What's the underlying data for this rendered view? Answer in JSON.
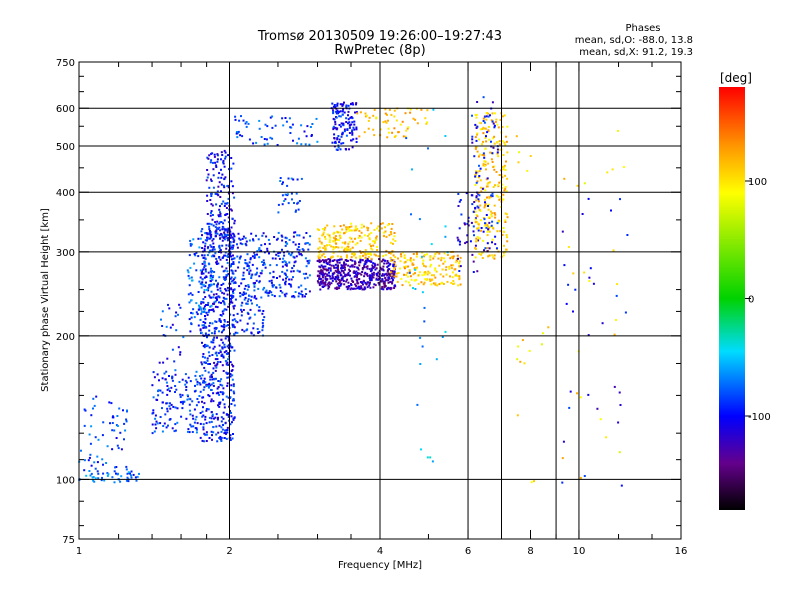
{
  "chart_data": {
    "type": "scatter",
    "title": "Tromsø 20130509 19:26:00–19:27:43",
    "subtitle": "RwPretec (8p)",
    "xlabel": "Frequency [MHz]",
    "ylabel": "Stationary phase Virtual Height [km]",
    "xscale": "log",
    "yscale": "log",
    "xlim": [
      1,
      16
    ],
    "ylim": [
      75,
      750
    ],
    "x_ticks": [
      1,
      2,
      4,
      6,
      8,
      10,
      16
    ],
    "x_tick_labels": [
      "1",
      "2",
      "4",
      "6",
      "8",
      "10",
      "16"
    ],
    "y_ticks": [
      75,
      100,
      200,
      300,
      400,
      500,
      600,
      750
    ],
    "y_tick_labels": [
      "75",
      "100",
      "200",
      "300",
      "400",
      "500",
      "600",
      "750"
    ],
    "grid": true,
    "stats": {
      "heading": "Phases",
      "line1": "mean, sd,O: -88.0, 13.8",
      "line2": "mean, sd,X:  91.2, 19.3"
    },
    "colorbar": {
      "label": "[deg]",
      "range": [
        -180,
        180
      ],
      "ticks": [
        100,
        0,
        -100
      ],
      "tick_labels": [
        "100",
        "0",
        "-100"
      ]
    },
    "clusters": [
      {
        "fmin": 1.0,
        "fmax": 1.32,
        "hmin": 98,
        "hmax": 105,
        "phase": -75,
        "count": 50
      },
      {
        "fmin": 1.0,
        "fmax": 1.25,
        "hmin": 105,
        "hmax": 150,
        "phase": -85,
        "count": 60
      },
      {
        "fmin": 1.4,
        "fmax": 1.75,
        "hmin": 125,
        "hmax": 170,
        "phase": -90,
        "count": 140
      },
      {
        "fmin": 1.45,
        "fmax": 1.65,
        "hmin": 175,
        "hmax": 240,
        "phase": -90,
        "count": 25
      },
      {
        "fmin": 1.75,
        "fmax": 2.05,
        "hmin": 120,
        "hmax": 340,
        "phase": -95,
        "count": 650
      },
      {
        "fmin": 1.8,
        "fmax": 2.05,
        "hmin": 320,
        "hmax": 490,
        "phase": -100,
        "count": 150
      },
      {
        "fmin": 1.65,
        "fmax": 1.85,
        "hmin": 200,
        "hmax": 320,
        "phase": -80,
        "count": 100
      },
      {
        "fmin": 2.0,
        "fmax": 2.9,
        "hmin": 240,
        "hmax": 330,
        "phase": -90,
        "count": 300
      },
      {
        "fmin": 2.05,
        "fmax": 2.35,
        "hmin": 200,
        "hmax": 245,
        "phase": -92,
        "count": 60
      },
      {
        "fmin": 2.05,
        "fmax": 3.0,
        "hmin": 500,
        "hmax": 580,
        "phase": -85,
        "count": 60
      },
      {
        "fmin": 2.5,
        "fmax": 2.8,
        "hmin": 360,
        "hmax": 430,
        "phase": -85,
        "count": 30
      },
      {
        "fmin": 3.0,
        "fmax": 4.3,
        "hmin": 250,
        "hmax": 290,
        "phase": -125,
        "count": 500
      },
      {
        "fmin": 3.0,
        "fmax": 4.3,
        "hmin": 290,
        "hmax": 345,
        "phase": 110,
        "count": 220
      },
      {
        "fmin": 3.2,
        "fmax": 3.6,
        "hmin": 490,
        "hmax": 620,
        "phase": -100,
        "count": 130
      },
      {
        "fmin": 3.6,
        "fmax": 5.0,
        "hmin": 520,
        "hmax": 600,
        "phase": 110,
        "count": 60
      },
      {
        "fmin": 4.2,
        "fmax": 5.8,
        "hmin": 255,
        "hmax": 300,
        "phase": 110,
        "count": 180
      },
      {
        "fmin": 5.7,
        "fmax": 6.3,
        "hmin": 270,
        "hmax": 400,
        "phase": -110,
        "count": 40
      },
      {
        "fmin": 6.2,
        "fmax": 7.2,
        "hmin": 290,
        "hmax": 590,
        "phase": 110,
        "count": 260
      },
      {
        "fmin": 6.1,
        "fmax": 6.9,
        "hmin": 300,
        "hmax": 640,
        "phase": -100,
        "count": 80
      },
      {
        "fmin": 4.5,
        "fmax": 5.5,
        "hmin": 100,
        "hmax": 620,
        "phase": -60,
        "count": 30
      },
      {
        "fmin": 7.5,
        "fmax": 12.5,
        "hmin": 95,
        "hmax": 560,
        "phase": 100,
        "count": 40
      },
      {
        "fmin": 9.0,
        "fmax": 12.5,
        "hmin": 95,
        "hmax": 400,
        "phase": -105,
        "count": 30
      }
    ]
  }
}
